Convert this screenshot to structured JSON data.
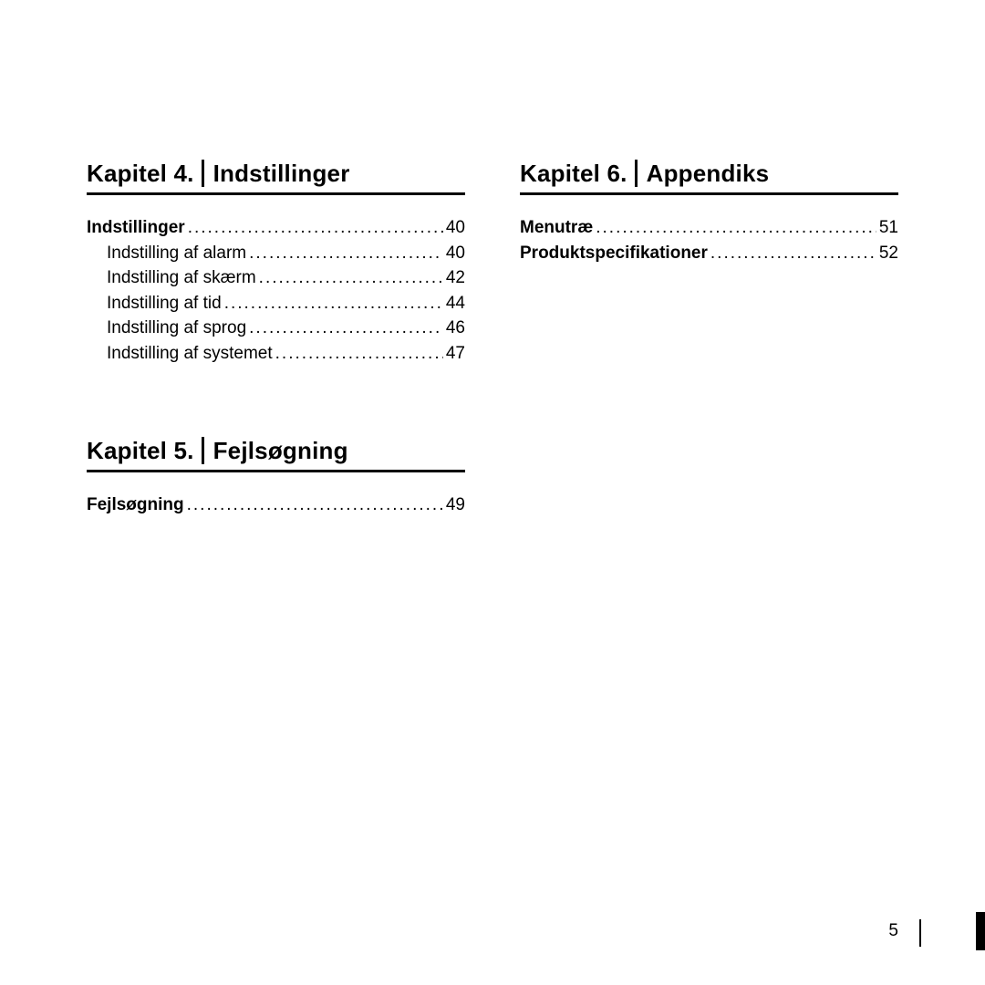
{
  "page_number": "5",
  "columns": [
    {
      "chapters": [
        {
          "number": "Kapitel 4.",
          "title": "Indstillinger",
          "entries": [
            {
              "level": 1,
              "label": "Indstillinger",
              "page": "40"
            },
            {
              "level": 2,
              "label": "Indstilling af alarm",
              "page": "40"
            },
            {
              "level": 2,
              "label": "Indstilling af skærm",
              "page": "42"
            },
            {
              "level": 2,
              "label": "Indstilling af tid",
              "page": "44"
            },
            {
              "level": 2,
              "label": "Indstilling af sprog",
              "page": "46"
            },
            {
              "level": 2,
              "label": "Indstilling af systemet ",
              "page": "47"
            }
          ]
        },
        {
          "number": "Kapitel 5.",
          "title": "Fejlsøgning",
          "entries": [
            {
              "level": 1,
              "label": "Fejlsøgning",
              "page": "49"
            }
          ]
        }
      ]
    },
    {
      "chapters": [
        {
          "number": "Kapitel 6.",
          "title": "Appendiks",
          "entries": [
            {
              "level": 1,
              "label": "Menutræ",
              "page": "51"
            },
            {
              "level": 1,
              "label": "Produktspecifikationer",
              "page": "52"
            }
          ]
        }
      ]
    }
  ],
  "colors": {
    "text": "#000000",
    "background": "#ffffff",
    "rule": "#000000"
  },
  "typography": {
    "heading_fontsize": 26,
    "body_fontsize": 19,
    "font_family": "Arial, Helvetica, sans-serif"
  }
}
